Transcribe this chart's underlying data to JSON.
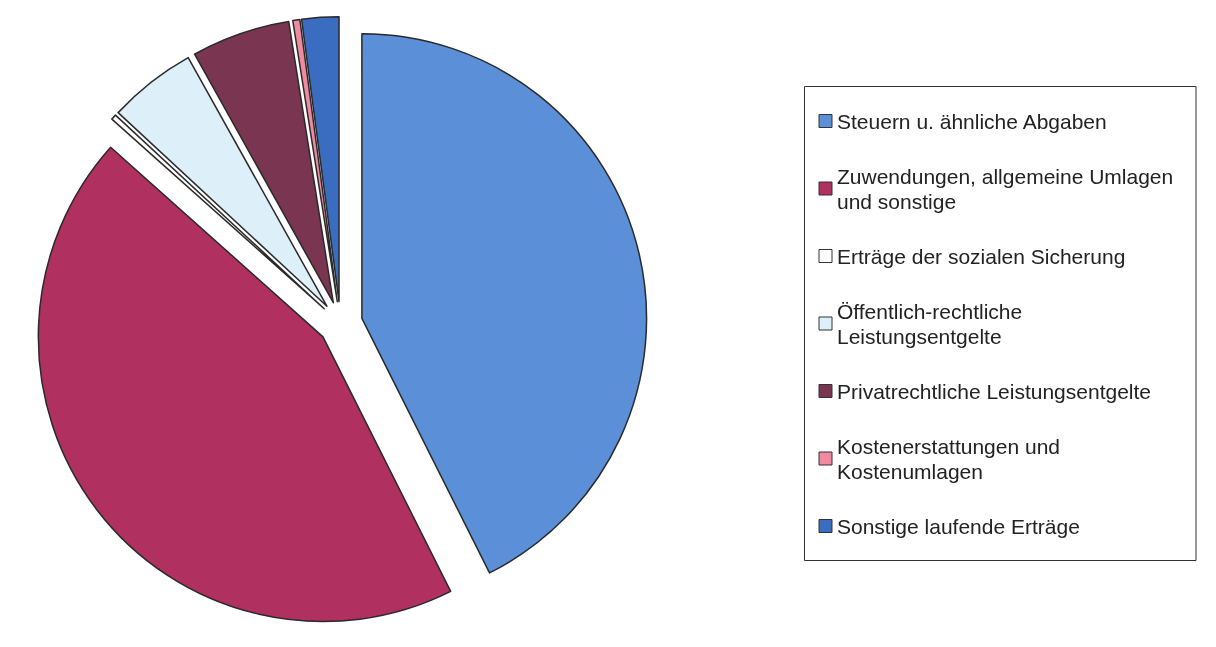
{
  "chart_data": {
    "type": "pie",
    "categories": [
      "Steuern u. ähnliche Abgaben",
      "Zuwendungen, allgemeine Umlagen und sonstige",
      "Erträge der sozialen Sicherung",
      "Öffentlich-rechtliche Leistungsentgelte",
      "Privatrechtliche Leistungsentgelte",
      "Kostenerstattungen und Kostenumlagen",
      "Sonstige laufende Erträge"
    ],
    "values": [
      42.6,
      44,
      0.3,
      5,
      5.6,
      0.4,
      2.1
    ],
    "colors": [
      "#5b8fd8",
      "#b0305f",
      "#ffffff",
      "#ddf0fa",
      "#7a3550",
      "#f08aa0",
      "#3a6cc0"
    ],
    "legend": "right"
  }
}
